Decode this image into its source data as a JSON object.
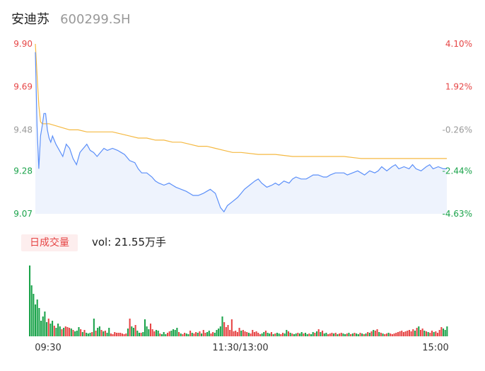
{
  "header": {
    "name": "安迪苏",
    "code": "600299.SH"
  },
  "volume_panel": {
    "badge": "日成交量",
    "vol_label": "vol: 21.55万手"
  },
  "colors": {
    "up": "#e64545",
    "down": "#1aa34a",
    "neutral": "#999999",
    "price_line": "#5b8ff9",
    "avg_line": "#f5b942",
    "area_fill": "#eef3fd"
  },
  "chart_data": [
    {
      "type": "line",
      "title": "",
      "y_left_ticks": [
        "9.90",
        "9.69",
        "9.48",
        "9.28",
        "9.07"
      ],
      "y_right_ticks": [
        "4.10%",
        "1.92%",
        "-0.26%",
        "-2.44%",
        "-4.63%"
      ],
      "x_ticks": [
        "09:30",
        "11:30/13:00",
        "15:00"
      ],
      "ylim": [
        9.07,
        9.9
      ],
      "x_range_minutes": [
        0,
        240
      ],
      "series": [
        {
          "role": "price",
          "x": [
            0,
            1,
            2,
            3,
            4,
            5,
            6,
            7,
            8,
            9,
            10,
            12,
            14,
            16,
            18,
            20,
            22,
            24,
            26,
            28,
            30,
            32,
            34,
            36,
            38,
            40,
            42,
            45,
            48,
            50,
            52,
            55,
            58,
            60,
            62,
            65,
            68,
            70,
            72,
            75,
            78,
            80,
            82,
            85,
            88,
            90,
            92,
            95,
            98,
            100,
            102,
            105,
            108,
            110,
            112,
            115,
            118,
            120,
            122,
            125,
            128,
            130,
            132,
            135,
            138,
            140,
            142,
            145,
            148,
            150,
            152,
            155,
            158,
            160,
            162,
            165,
            168,
            170,
            172,
            175,
            178,
            180,
            182,
            185,
            188,
            190,
            192,
            195,
            198,
            200,
            202,
            205,
            208,
            210,
            212,
            215,
            218,
            220,
            222,
            225,
            228,
            230,
            232,
            235,
            238,
            240
          ],
          "values": [
            9.86,
            9.5,
            9.29,
            9.45,
            9.5,
            9.56,
            9.56,
            9.48,
            9.44,
            9.42,
            9.45,
            9.41,
            9.38,
            9.35,
            9.41,
            9.39,
            9.34,
            9.31,
            9.37,
            9.39,
            9.41,
            9.38,
            9.37,
            9.35,
            9.37,
            9.39,
            9.38,
            9.39,
            9.38,
            9.37,
            9.36,
            9.33,
            9.32,
            9.29,
            9.27,
            9.27,
            9.25,
            9.23,
            9.22,
            9.21,
            9.22,
            9.21,
            9.2,
            9.19,
            9.18,
            9.17,
            9.16,
            9.16,
            9.17,
            9.18,
            9.19,
            9.17,
            9.1,
            9.08,
            9.11,
            9.13,
            9.15,
            9.17,
            9.19,
            9.21,
            9.23,
            9.24,
            9.22,
            9.2,
            9.21,
            9.22,
            9.21,
            9.23,
            9.22,
            9.24,
            9.25,
            9.24,
            9.24,
            9.25,
            9.26,
            9.26,
            9.25,
            9.25,
            9.26,
            9.27,
            9.27,
            9.27,
            9.26,
            9.27,
            9.28,
            9.27,
            9.26,
            9.28,
            9.27,
            9.28,
            9.3,
            9.28,
            9.3,
            9.31,
            9.29,
            9.3,
            9.29,
            9.31,
            9.29,
            9.28,
            9.3,
            9.31,
            9.29,
            9.3,
            9.29,
            9.29
          ]
        },
        {
          "role": "average",
          "x": [
            0,
            1,
            2,
            3,
            4,
            6,
            8,
            12,
            16,
            20,
            25,
            30,
            35,
            40,
            45,
            50,
            55,
            60,
            65,
            70,
            75,
            80,
            85,
            90,
            95,
            100,
            105,
            110,
            115,
            120,
            130,
            140,
            150,
            160,
            170,
            180,
            190,
            200,
            210,
            220,
            230,
            240
          ],
          "values": [
            9.9,
            9.75,
            9.6,
            9.52,
            9.51,
            9.51,
            9.51,
            9.5,
            9.49,
            9.48,
            9.48,
            9.47,
            9.47,
            9.47,
            9.47,
            9.46,
            9.45,
            9.44,
            9.44,
            9.43,
            9.43,
            9.42,
            9.42,
            9.41,
            9.4,
            9.4,
            9.39,
            9.38,
            9.37,
            9.37,
            9.36,
            9.36,
            9.35,
            9.35,
            9.35,
            9.35,
            9.34,
            9.34,
            9.34,
            9.34,
            9.34,
            9.34
          ]
        }
      ]
    },
    {
      "type": "bar",
      "title": "日成交量",
      "x_ticks": [
        "09:30",
        "11:30/13:00",
        "15:00"
      ],
      "ylim": [
        0,
        100
      ],
      "values": [
        100,
        72,
        60,
        45,
        52,
        40,
        22,
        28,
        35,
        20,
        25,
        18,
        22,
        15,
        12,
        18,
        14,
        10,
        12,
        14,
        13,
        12,
        11,
        9,
        7,
        8,
        13,
        10,
        6,
        9,
        5,
        4,
        5,
        6,
        25,
        8,
        12,
        14,
        9,
        7,
        8,
        5,
        12,
        4,
        3,
        6,
        5,
        5,
        5,
        4,
        3,
        4,
        11,
        25,
        14,
        12,
        16,
        8,
        5,
        5,
        6,
        24,
        14,
        10,
        18,
        10,
        7,
        9,
        8,
        4,
        3,
        6,
        3,
        5,
        7,
        8,
        10,
        9,
        12,
        6,
        4,
        3,
        5,
        4,
        3,
        8,
        5,
        4,
        6,
        5,
        7,
        4,
        9,
        5,
        6,
        8,
        4,
        6,
        5,
        9,
        11,
        14,
        28,
        20,
        13,
        16,
        9,
        24,
        7,
        8,
        6,
        12,
        8,
        9,
        7,
        6,
        5,
        4,
        9,
        6,
        7,
        5,
        3,
        4,
        6,
        8,
        5,
        4,
        6,
        3,
        4,
        5,
        4,
        3,
        5,
        4,
        9,
        7,
        5,
        4,
        3,
        4,
        5,
        4,
        6,
        4,
        5,
        3,
        4,
        3,
        6,
        5,
        7,
        10,
        6,
        8,
        4,
        5,
        3,
        4,
        5,
        4,
        5,
        3,
        4,
        5,
        4,
        3,
        4,
        5,
        3,
        4,
        5,
        4,
        3,
        5,
        4,
        3,
        4,
        6,
        5,
        7,
        9,
        8,
        10,
        6,
        5,
        4,
        3,
        4,
        5,
        4,
        3,
        4,
        5,
        6,
        7,
        8,
        6,
        7,
        8,
        9,
        7,
        10,
        8,
        12,
        14,
        9,
        11,
        8,
        7,
        6,
        5,
        8,
        6,
        7,
        5,
        9,
        13,
        11,
        9,
        14
      ],
      "up": [
        0,
        0,
        0,
        0,
        0,
        0,
        0,
        0,
        0,
        0,
        1,
        0,
        0,
        1,
        0,
        0,
        0,
        1,
        0,
        1,
        1,
        1,
        0,
        1,
        0,
        0,
        0,
        1,
        0,
        1,
        0,
        0,
        0,
        1,
        0,
        1,
        0,
        0,
        1,
        0,
        1,
        0,
        0,
        1,
        1,
        1,
        1,
        1,
        1,
        1,
        1,
        1,
        0,
        1,
        0,
        0,
        1,
        0,
        0,
        1,
        0,
        0,
        0,
        0,
        1,
        1,
        1,
        0,
        0,
        1,
        0,
        0,
        0,
        1,
        1,
        0,
        0,
        0,
        0,
        1,
        0,
        1,
        1,
        0,
        0,
        1,
        0,
        1,
        1,
        0,
        1,
        0,
        1,
        1,
        0,
        0,
        1,
        1,
        0,
        0,
        0,
        0,
        0,
        1,
        1,
        1,
        1,
        1,
        1,
        1,
        1,
        1,
        0,
        1,
        1,
        1,
        0,
        1,
        1,
        1,
        1,
        1,
        1,
        0,
        0,
        1,
        0,
        0,
        1,
        0,
        1,
        0,
        0,
        1,
        1,
        0,
        0,
        1,
        0,
        1,
        0,
        0,
        1,
        0,
        0,
        1,
        0,
        0,
        1,
        0,
        0,
        1,
        0,
        1,
        0,
        1,
        0,
        0,
        1,
        1,
        1,
        0,
        1,
        0,
        1,
        1,
        0,
        0,
        1,
        0,
        1,
        0,
        1,
        0,
        0,
        1,
        0,
        1,
        0,
        1,
        0,
        1,
        0,
        1,
        1,
        0,
        1,
        0,
        1,
        1,
        0,
        1,
        1,
        1,
        1,
        1,
        1,
        1,
        1,
        1,
        1,
        1,
        1,
        1,
        0,
        1,
        0,
        1,
        1,
        0,
        1,
        0,
        1,
        1,
        0,
        1,
        1,
        1,
        1,
        0
      ]
    }
  ]
}
